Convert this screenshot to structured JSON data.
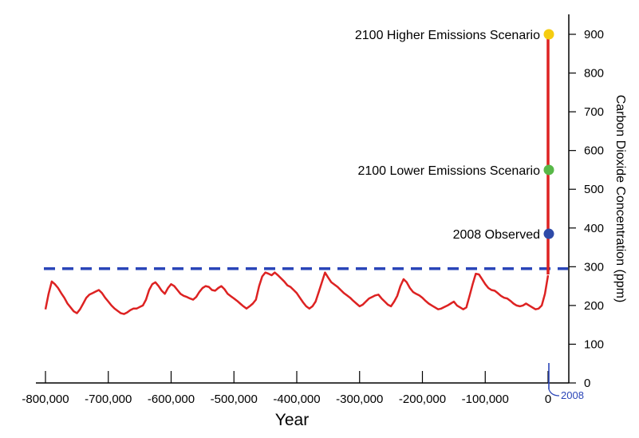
{
  "chart_data": {
    "type": "line",
    "xlabel": "Year",
    "ylabel": "Carbon Dioxide Concentration (ppm)",
    "xlim": [
      -800000,
      0
    ],
    "ylim": [
      0,
      900
    ],
    "x_ticks": [
      -800000,
      -700000,
      -600000,
      -500000,
      -400000,
      -300000,
      -200000,
      -100000,
      0
    ],
    "x_tick_labels": [
      "-800,000",
      "-700,000",
      "-600,000",
      "-500,000",
      "-400,000",
      "-300,000",
      "-200,000",
      "-100,000",
      "0"
    ],
    "y_ticks": [
      0,
      100,
      200,
      300,
      400,
      500,
      600,
      700,
      800,
      900
    ],
    "y_tick_labels": [
      "0",
      "100",
      "200",
      "300",
      "400",
      "500",
      "600",
      "700",
      "800",
      "900"
    ],
    "reference_line": {
      "y": 295,
      "style": "dashed",
      "color": "#2a45b8"
    },
    "series": [
      {
        "color": "#dd2222",
        "x": [
          -800000,
          -795000,
          -790000,
          -785000,
          -780000,
          -775000,
          -770000,
          -765000,
          -760000,
          -755000,
          -750000,
          -745000,
          -740000,
          -735000,
          -730000,
          -725000,
          -720000,
          -715000,
          -710000,
          -705000,
          -700000,
          -695000,
          -690000,
          -685000,
          -680000,
          -675000,
          -670000,
          -665000,
          -660000,
          -655000,
          -650000,
          -645000,
          -640000,
          -635000,
          -630000,
          -625000,
          -620000,
          -615000,
          -610000,
          -605000,
          -600000,
          -595000,
          -590000,
          -585000,
          -580000,
          -575000,
          -570000,
          -565000,
          -560000,
          -555000,
          -550000,
          -545000,
          -540000,
          -535000,
          -530000,
          -525000,
          -520000,
          -515000,
          -510000,
          -505000,
          -500000,
          -495000,
          -490000,
          -485000,
          -480000,
          -475000,
          -470000,
          -465000,
          -460000,
          -455000,
          -450000,
          -445000,
          -440000,
          -435000,
          -430000,
          -425000,
          -420000,
          -415000,
          -410000,
          -405000,
          -400000,
          -395000,
          -390000,
          -385000,
          -380000,
          -375000,
          -370000,
          -365000,
          -360000,
          -355000,
          -350000,
          -345000,
          -340000,
          -335000,
          -330000,
          -325000,
          -320000,
          -315000,
          -310000,
          -305000,
          -300000,
          -295000,
          -290000,
          -285000,
          -280000,
          -275000,
          -270000,
          -265000,
          -260000,
          -255000,
          -250000,
          -245000,
          -240000,
          -235000,
          -230000,
          -225000,
          -220000,
          -215000,
          -210000,
          -205000,
          -200000,
          -195000,
          -190000,
          -185000,
          -180000,
          -175000,
          -170000,
          -165000,
          -160000,
          -155000,
          -150000,
          -145000,
          -140000,
          -135000,
          -130000,
          -125000,
          -120000,
          -115000,
          -110000,
          -105000,
          -100000,
          -95000,
          -90000,
          -85000,
          -80000,
          -75000,
          -70000,
          -65000,
          -60000,
          -55000,
          -50000,
          -45000,
          -40000,
          -35000,
          -30000,
          -25000,
          -20000,
          -15000,
          -10000,
          -5000,
          0
        ],
        "y": [
          190,
          230,
          262,
          255,
          245,
          232,
          220,
          205,
          195,
          185,
          180,
          190,
          205,
          220,
          228,
          232,
          236,
          240,
          232,
          220,
          210,
          200,
          192,
          186,
          180,
          178,
          182,
          188,
          192,
          192,
          196,
          200,
          215,
          240,
          255,
          260,
          250,
          238,
          230,
          245,
          255,
          250,
          240,
          230,
          225,
          222,
          218,
          215,
          222,
          235,
          245,
          250,
          248,
          240,
          238,
          245,
          250,
          242,
          230,
          224,
          218,
          212,
          205,
          198,
          192,
          198,
          205,
          215,
          250,
          275,
          285,
          282,
          278,
          285,
          278,
          270,
          262,
          252,
          248,
          240,
          232,
          220,
          208,
          198,
          192,
          198,
          210,
          235,
          260,
          285,
          272,
          260,
          254,
          248,
          240,
          232,
          226,
          220,
          212,
          205,
          198,
          202,
          210,
          218,
          222,
          226,
          228,
          218,
          210,
          202,
          198,
          210,
          225,
          250,
          268,
          260,
          245,
          235,
          230,
          226,
          220,
          212,
          205,
          200,
          195,
          190,
          192,
          196,
          200,
          205,
          210,
          200,
          195,
          190,
          195,
          225,
          255,
          282,
          280,
          268,
          255,
          245,
          240,
          238,
          232,
          225,
          220,
          218,
          212,
          205,
          200,
          198,
          200,
          205,
          200,
          195,
          190,
          192,
          200,
          230,
          278
        ],
        "name": ""
      },
      {
        "color": "#dd2222",
        "x": [
          0,
          0
        ],
        "y": [
          280,
          900
        ],
        "name": ""
      }
    ],
    "annotations": [
      {
        "label": "2100 Higher Emissions Scenario",
        "x": 0,
        "y": 900,
        "color": "#f5cc10"
      },
      {
        "label": "2100 Lower Emissions Scenario",
        "x": 0,
        "y": 550,
        "color": "#58b848"
      },
      {
        "label": "2008 Observed",
        "x": 0,
        "y": 385,
        "color": "#2e4aa8"
      }
    ],
    "callout": {
      "label": "2008",
      "color": "#2a45b8"
    }
  }
}
